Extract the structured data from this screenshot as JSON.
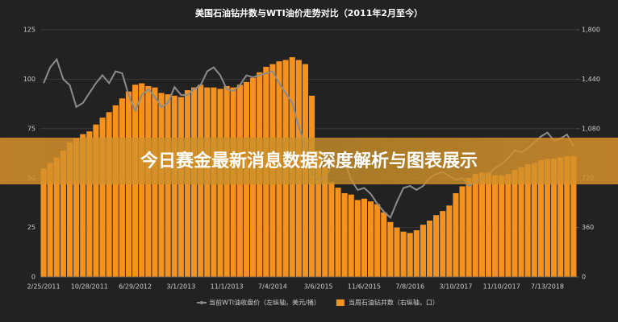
{
  "chart_data": {
    "type": "bar_line",
    "title": "美国石油钻井数与WTI油价走势对比（2011年2月至今）",
    "banner": "今日赛金最新消息数据深度解析与图表展示",
    "categories": [
      "2/25/2011",
      null,
      null,
      null,
      null,
      null,
      null,
      "10/28/2011",
      null,
      null,
      null,
      null,
      null,
      null,
      "6/29/2012",
      null,
      null,
      null,
      null,
      null,
      null,
      "3/1/2013",
      null,
      null,
      null,
      null,
      null,
      null,
      "11/1/2013",
      null,
      null,
      null,
      null,
      null,
      null,
      "7/4/2014",
      null,
      null,
      null,
      null,
      null,
      null,
      "3/6/2015",
      null,
      null,
      null,
      null,
      null,
      null,
      "11/6/2015",
      null,
      null,
      null,
      null,
      null,
      null,
      "7/8/2016",
      null,
      null,
      null,
      null,
      null,
      null,
      "3/10/2017",
      null,
      null,
      null,
      null,
      null,
      null,
      "11/10/2017",
      null,
      null,
      null,
      null,
      null,
      null,
      "7/13/2018",
      null,
      null,
      null,
      null
    ],
    "series": [
      {
        "name": "当前WTI油收盘价（左纵轴，美元/桶）",
        "type": "line",
        "color": "#8c8c8c",
        "values": [
          98,
          106,
          110,
          100,
          97,
          86,
          88,
          93,
          98,
          102,
          98,
          104,
          103,
          92,
          84,
          92,
          95,
          91,
          86,
          88,
          96,
          92,
          92,
          95,
          97,
          104,
          106,
          102,
          95,
          94,
          97,
          102,
          101,
          102,
          103,
          104,
          98,
          93,
          88,
          76,
          66,
          52,
          49,
          50,
          56,
          60,
          59,
          49,
          44,
          45,
          42,
          37,
          33,
          30,
          38,
          45,
          46,
          44,
          46,
          50,
          52,
          53,
          51,
          49,
          50,
          46,
          48,
          50,
          52,
          55,
          57,
          60,
          64,
          63,
          65,
          68,
          71,
          73,
          69,
          70,
          72,
          66
        ]
      },
      {
        "name": "当周石油钻井数（右纵轴，口）",
        "type": "bar",
        "axis": "y2",
        "color": "#f5921e",
        "values": [
          790,
          830,
          870,
          920,
          980,
          1010,
          1040,
          1060,
          1110,
          1160,
          1200,
          1250,
          1300,
          1350,
          1400,
          1410,
          1390,
          1380,
          1340,
          1330,
          1320,
          1310,
          1360,
          1380,
          1400,
          1380,
          1380,
          1370,
          1390,
          1380,
          1400,
          1420,
          1450,
          1490,
          1530,
          1550,
          1570,
          1580,
          1600,
          1580,
          1550,
          1320,
          920,
          800,
          690,
          650,
          610,
          600,
          560,
          570,
          550,
          530,
          470,
          400,
          360,
          330,
          320,
          340,
          380,
          410,
          450,
          480,
          520,
          610,
          660,
          720,
          750,
          760,
          760,
          740,
          740,
          750,
          780,
          800,
          820,
          830,
          850,
          860,
          860,
          870,
          880,
          880
        ]
      }
    ],
    "ylim": [
      0,
      125
    ],
    "yticks": [
      0,
      25,
      50,
      75,
      100,
      125
    ],
    "y2lim": [
      0,
      1800
    ],
    "y2ticks": [
      0,
      360,
      720,
      {
        "value": 1080,
        "label": "1,080"
      },
      {
        "value": 1440,
        "label": "1,440"
      },
      {
        "value": 1800,
        "label": "1,800"
      }
    ],
    "grid": true
  }
}
